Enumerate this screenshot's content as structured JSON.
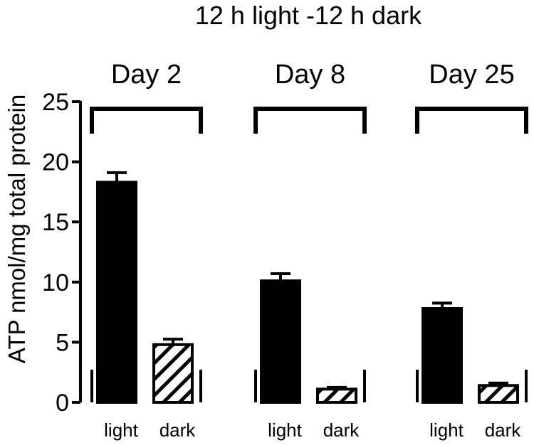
{
  "chart_data": {
    "type": "bar",
    "title": "12 h light -12 h dark",
    "ylabel": "ATP nmol/mg total protein",
    "xlabel": "",
    "ylim": [
      0,
      25
    ],
    "yticks": [
      0,
      5,
      10,
      15,
      20,
      25
    ],
    "grid": false,
    "groups": [
      {
        "label": "Day 2",
        "categories": [
          "light",
          "dark"
        ],
        "values": [
          18.3,
          4.8
        ],
        "errors": [
          0.8,
          0.45
        ]
      },
      {
        "label": "Day 8",
        "categories": [
          "light",
          "dark"
        ],
        "values": [
          10.1,
          1.1
        ],
        "errors": [
          0.6,
          0.15
        ]
      },
      {
        "label": "Day 25",
        "categories": [
          "light",
          "dark"
        ],
        "values": [
          7.8,
          1.4
        ],
        "errors": [
          0.45,
          0.2
        ]
      }
    ],
    "series_styles": [
      {
        "category": "light",
        "fill": "#000000"
      },
      {
        "category": "dark",
        "fill": "hatched"
      }
    ]
  }
}
